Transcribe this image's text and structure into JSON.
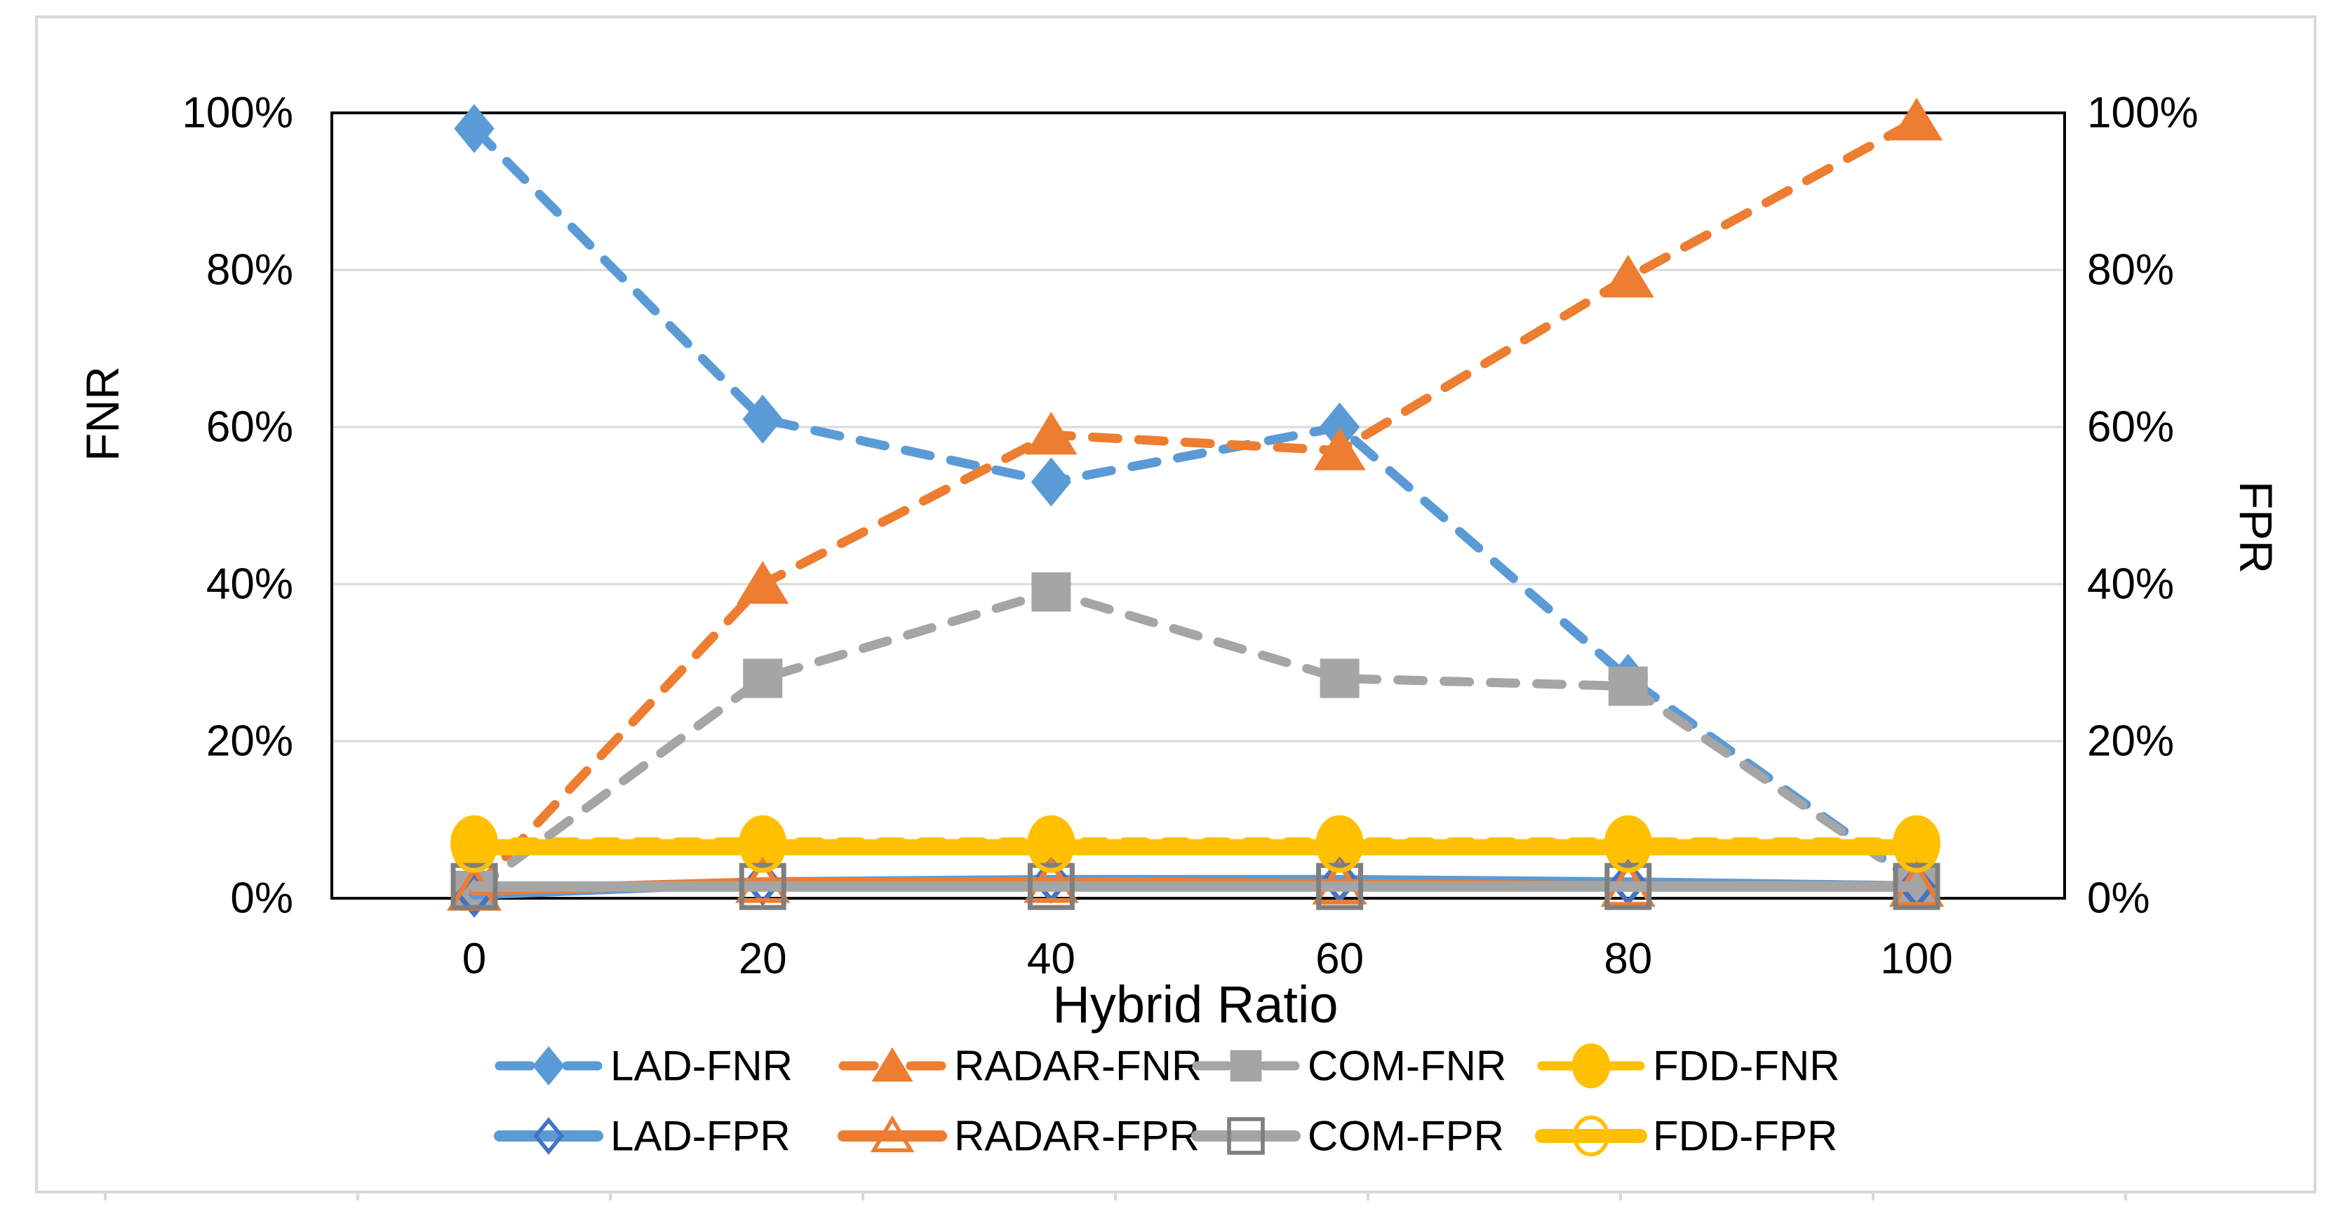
{
  "chart_data": {
    "type": "line",
    "title": "",
    "xlabel": "Hybrid Ratio",
    "ylabel_left": "FNR",
    "ylabel_right": "FPR",
    "x": [
      0,
      20,
      40,
      60,
      80,
      100
    ],
    "x_tick_labels": [
      "0",
      "20",
      "40",
      "60",
      "80",
      "100"
    ],
    "y_tick_labels_left": [
      "100%",
      "80%",
      "60%",
      "40%",
      "20%",
      "0%"
    ],
    "y_tick_labels_right": [
      "100%",
      "80%",
      "60%",
      "40%",
      "20%",
      "0%"
    ],
    "ylim": [
      0,
      100
    ],
    "grid": true,
    "legend_position": "bottom-two-rows",
    "axis_color": "#000000",
    "gridline_color": "#d9d9d9",
    "frame_color": "#d9d9d9",
    "series": [
      {
        "name": "LAD-FNR",
        "color": "#5b9bd5",
        "line": "dashed",
        "marker": "diamond",
        "marker_fill": "filled",
        "marker_stroke": "#5b9bd5",
        "axis": "left",
        "values": [
          98,
          61,
          53,
          60,
          28,
          2
        ]
      },
      {
        "name": "RADAR-FNR",
        "color": "#ed7d31",
        "line": "dashed",
        "marker": "triangle",
        "marker_fill": "filled",
        "marker_stroke": "#ed7d31",
        "axis": "left",
        "values": [
          1,
          40,
          59,
          57,
          79,
          99
        ]
      },
      {
        "name": "COM-FNR",
        "color": "#a5a5a5",
        "line": "dashed",
        "marker": "square",
        "marker_fill": "filled",
        "marker_stroke": "#a5a5a5",
        "axis": "left",
        "values": [
          1,
          28,
          39,
          28,
          27,
          2
        ]
      },
      {
        "name": "FDD-FNR",
        "color": "#ffc000",
        "line": "dashed",
        "marker": "circle",
        "marker_fill": "filled",
        "marker_stroke": "#ffc000",
        "axis": "left",
        "values": [
          7,
          7,
          7,
          7,
          7,
          7
        ]
      },
      {
        "name": "LAD-FPR",
        "color": "#5b9bd5",
        "line": "solid",
        "marker": "diamond",
        "marker_fill": "open",
        "marker_stroke": "#4472c4",
        "axis": "right",
        "values": [
          0.5,
          2,
          2.3,
          2.3,
          2,
          1.5
        ]
      },
      {
        "name": "RADAR-FPR",
        "color": "#ed7d31",
        "line": "solid",
        "marker": "triangle",
        "marker_fill": "open",
        "marker_stroke": "#ed7d31",
        "axis": "right",
        "values": [
          1,
          2,
          2,
          1.8,
          1.5,
          1.5
        ]
      },
      {
        "name": "COM-FPR",
        "color": "#a5a5a5",
        "line": "solid",
        "marker": "square",
        "marker_fill": "open",
        "marker_stroke": "#7f7f7f",
        "axis": "right",
        "values": [
          1.5,
          1.5,
          1.5,
          1.5,
          1.5,
          1.5
        ]
      },
      {
        "name": "FDD-FPR",
        "color": "#ffc000",
        "line": "solid",
        "marker": "circle",
        "marker_fill": "open",
        "marker_stroke": "#ffc000",
        "axis": "right",
        "values": [
          6.5,
          6.5,
          6.5,
          6.5,
          6.5,
          6.5
        ]
      }
    ]
  }
}
